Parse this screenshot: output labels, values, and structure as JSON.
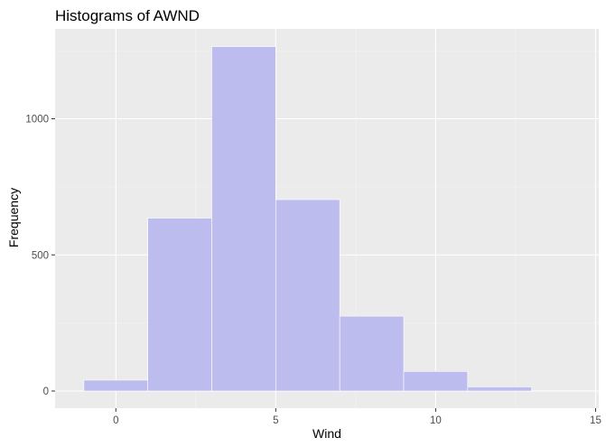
{
  "chart_data": {
    "type": "bar",
    "title": "Histograms of AWND",
    "xlabel": "Wind",
    "ylabel": "Frequency",
    "xlim": [
      -1.9,
      15.1
    ],
    "ylim": [
      -63,
      1330
    ],
    "x_ticks": [
      0,
      5,
      10,
      15
    ],
    "x_minor": [
      2.5,
      7.5,
      12.5
    ],
    "y_ticks": [
      0,
      500,
      1000
    ],
    "y_minor": [
      250,
      750,
      1250
    ],
    "bins": [
      {
        "x0": -1,
        "x1": 1,
        "count": 40
      },
      {
        "x0": 1,
        "x1": 3,
        "count": 635
      },
      {
        "x0": 3,
        "x1": 5,
        "count": 1265
      },
      {
        "x0": 5,
        "x1": 7,
        "count": 703
      },
      {
        "x0": 7,
        "x1": 9,
        "count": 275
      },
      {
        "x0": 9,
        "x1": 11,
        "count": 72
      },
      {
        "x0": 11,
        "x1": 13,
        "count": 15
      },
      {
        "x0": 13,
        "x1": 15,
        "count": 1
      }
    ],
    "grid": true,
    "colors": {
      "panel": "#ebebeb",
      "grid_major": "#ffffff",
      "bar_fill": "#bcbcef",
      "bar_outline": "#ffffff"
    }
  }
}
